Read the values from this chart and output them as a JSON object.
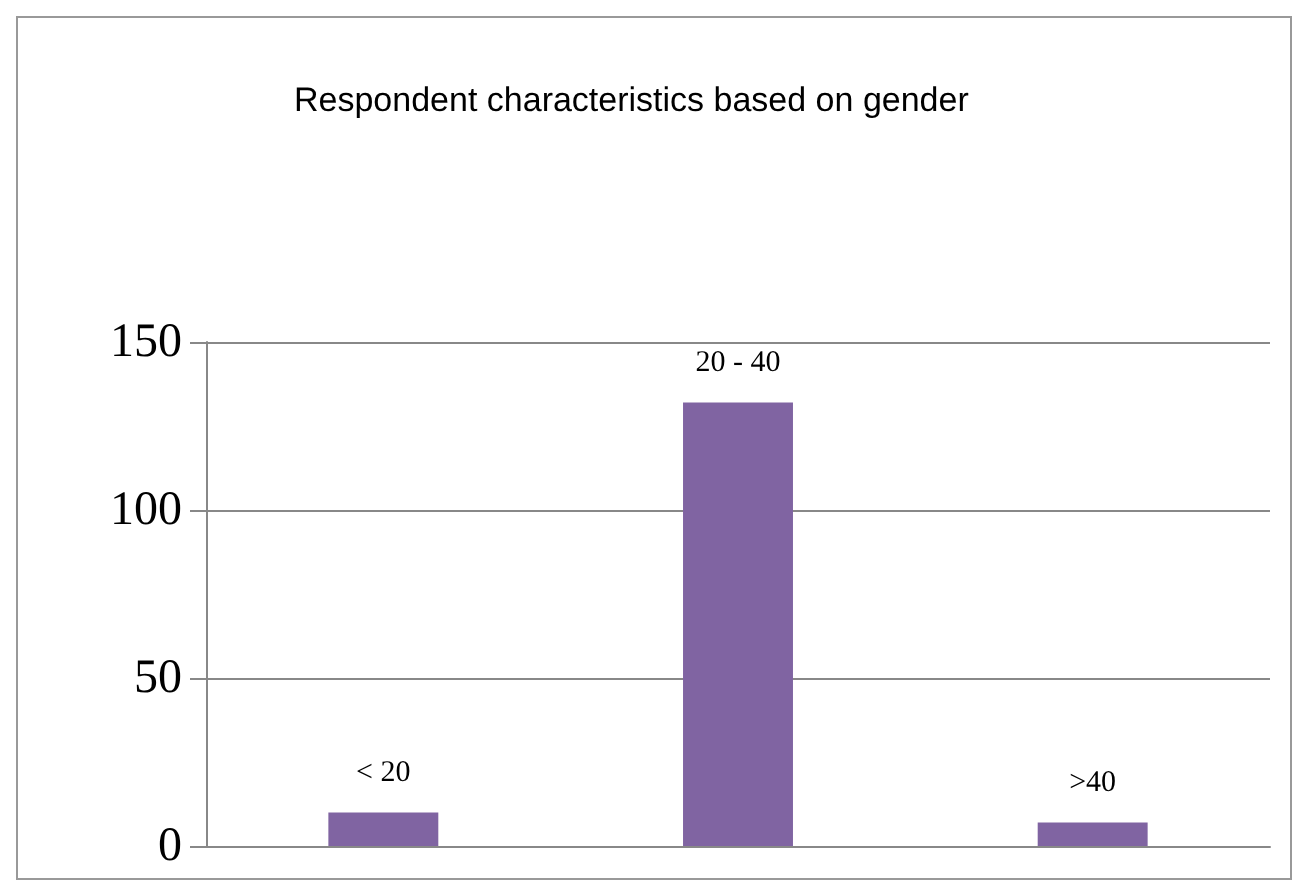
{
  "chart_data": {
    "type": "bar",
    "title": "Respondent characteristics based on gender",
    "categories": [
      "< 20",
      "20 - 40",
      ">40"
    ],
    "values": [
      10,
      132,
      7
    ],
    "color": "#8064a2",
    "ylim": [
      0,
      150
    ],
    "yticks": [
      0,
      50,
      100,
      150
    ],
    "grid": "y",
    "tick_labels": "y"
  }
}
